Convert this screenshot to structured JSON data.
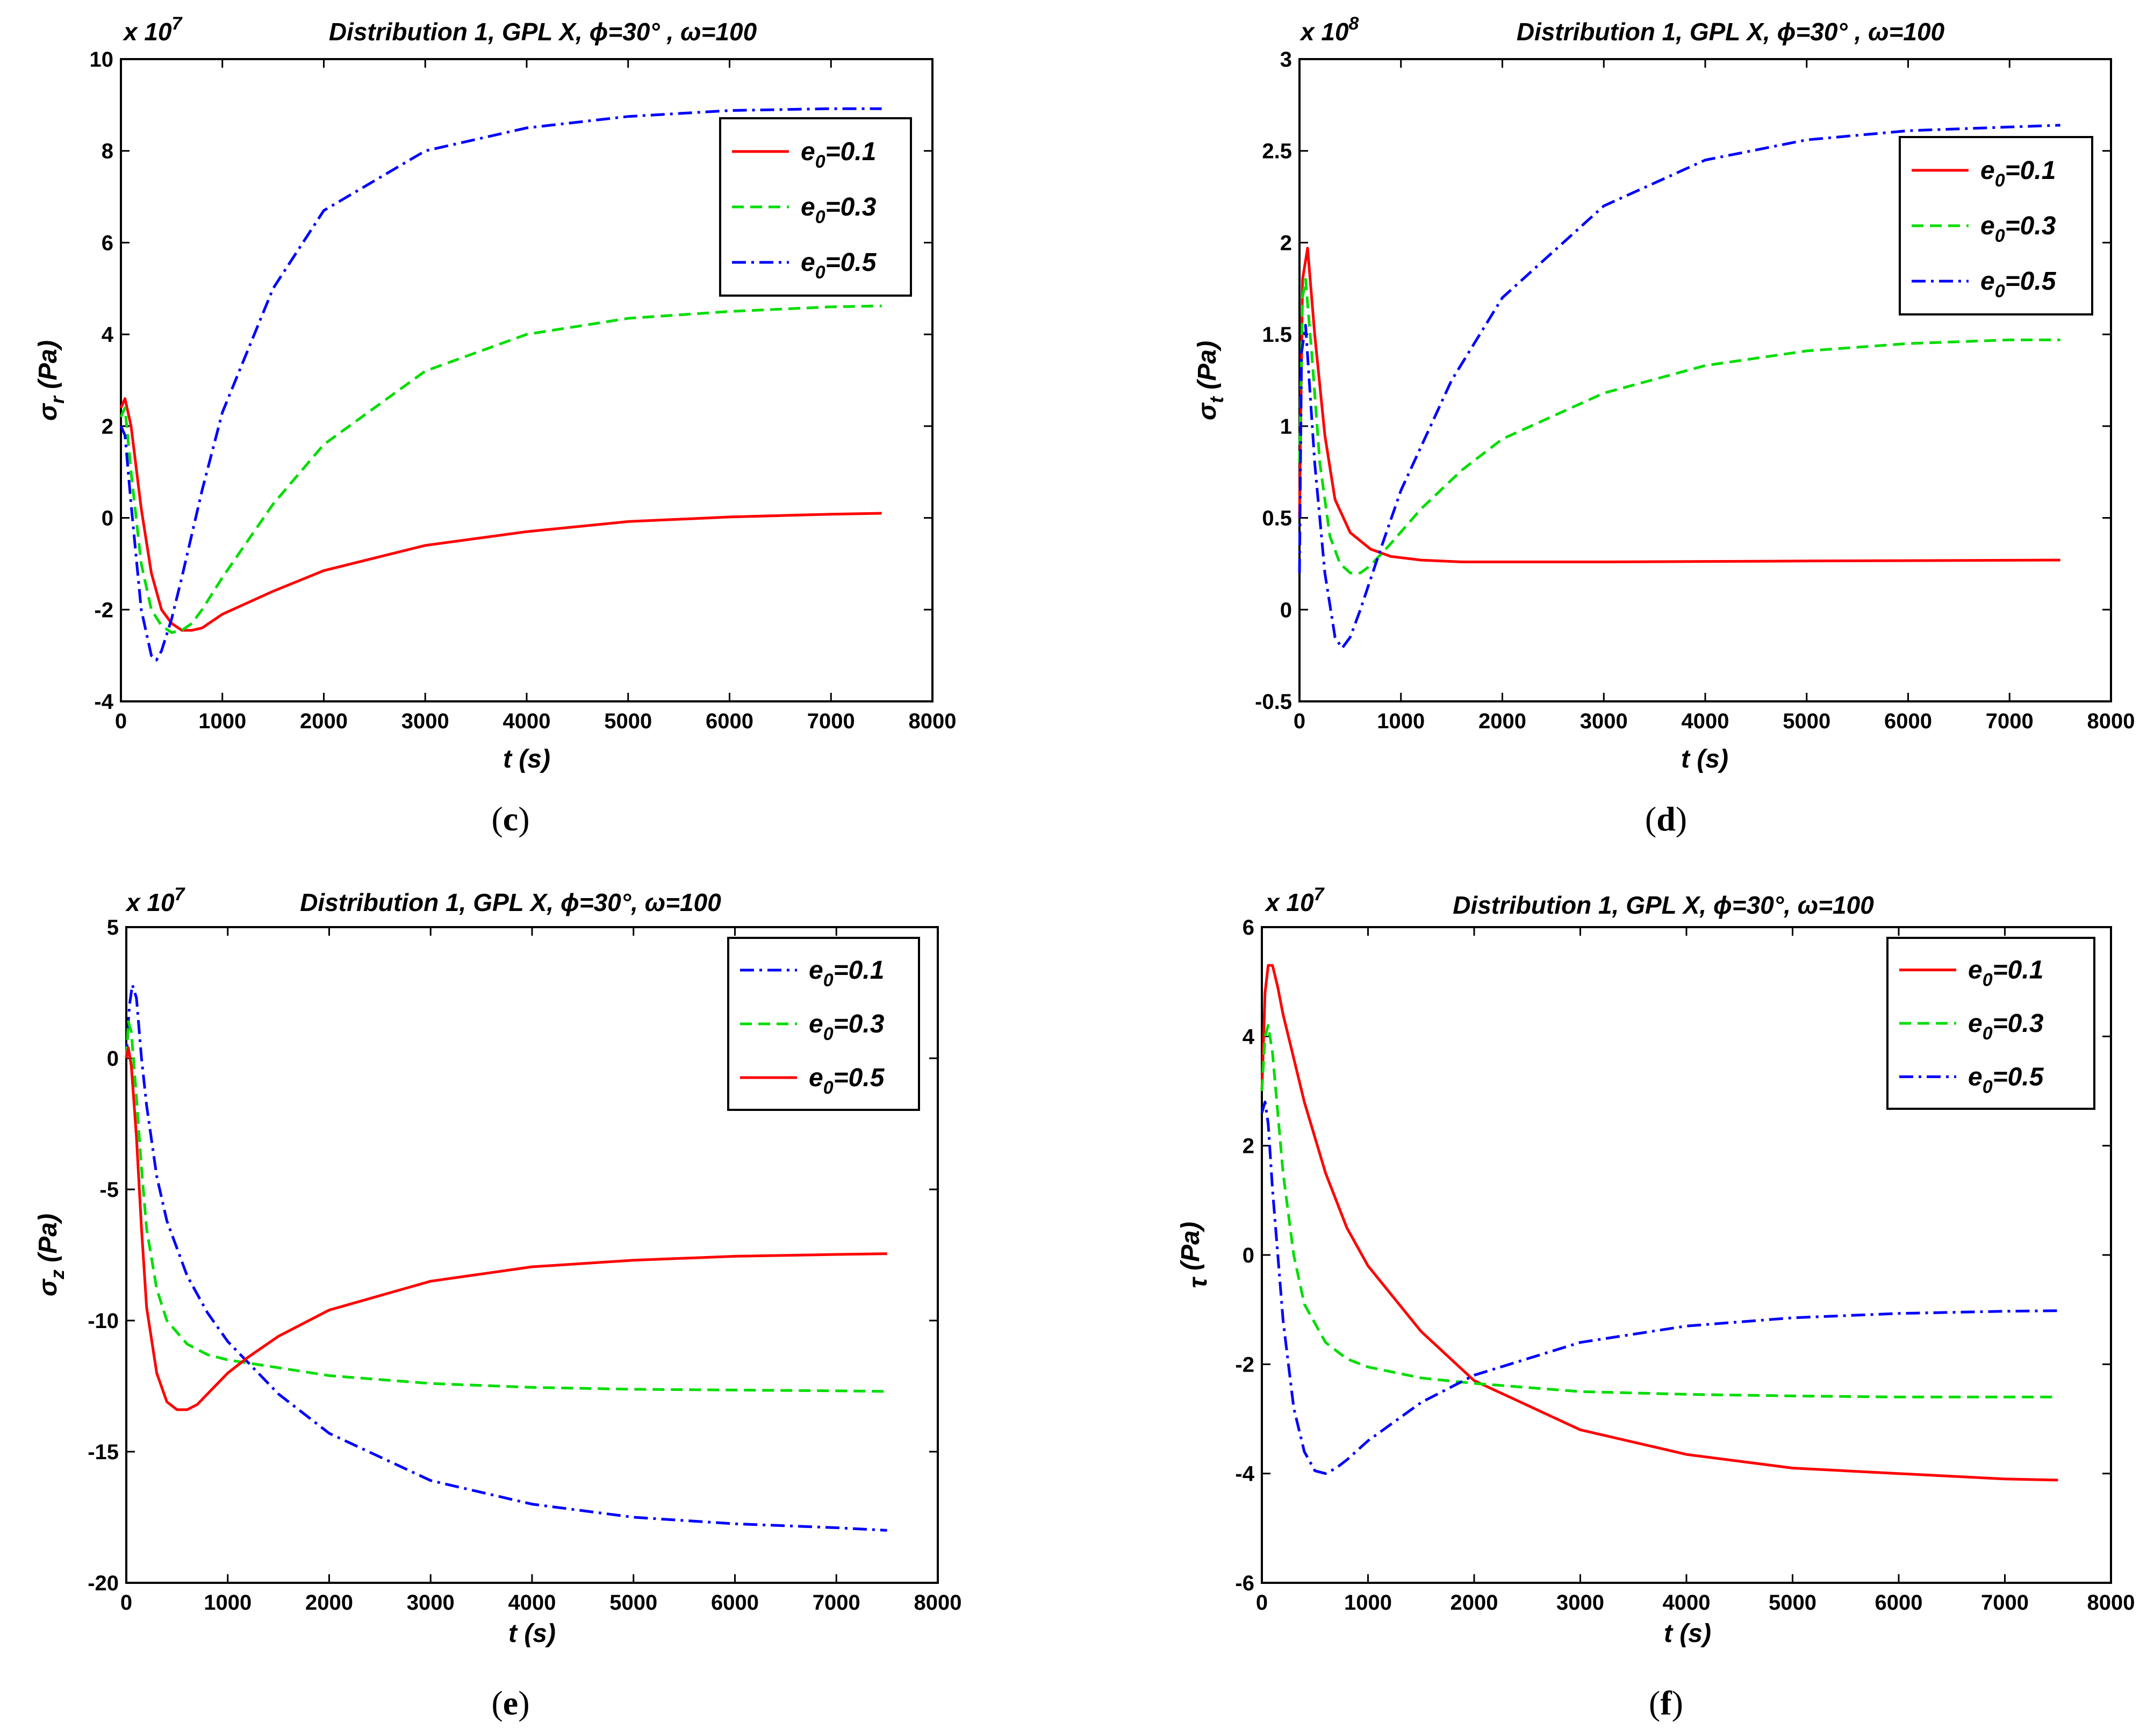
{
  "colors": {
    "red": "#ff0000",
    "green": "#00dd00",
    "blue": "#0000ff",
    "axis": "#000000"
  },
  "chart_data": [
    {
      "type": "line",
      "caption": "c",
      "title": "Distribution 1, GPL X, ϕ=30° , ω=100",
      "multiplier": "x 10",
      "exponent": "7",
      "xlabel": "t (s)",
      "ylabel_sym": "σ",
      "ylabel_sub": "r",
      "ylabel_unit": " (Pa)",
      "xlim": [
        0,
        8000
      ],
      "ylim": [
        -4,
        10
      ],
      "xticks": [
        0,
        1000,
        2000,
        3000,
        4000,
        5000,
        6000,
        7000,
        8000
      ],
      "yticks": [
        -4,
        -2,
        0,
        2,
        4,
        6,
        8,
        10
      ],
      "series": [
        {
          "legend": "0.1",
          "color": "red",
          "dash": "solid",
          "x": [
            0,
            40,
            100,
            200,
            300,
            400,
            500,
            600,
            700,
            800,
            1000,
            1500,
            2000,
            3000,
            4000,
            5000,
            6000,
            7000,
            7500
          ],
          "y": [
            2.4,
            2.6,
            2.0,
            0.2,
            -1.2,
            -2.0,
            -2.3,
            -2.45,
            -2.45,
            -2.4,
            -2.1,
            -1.6,
            -1.15,
            -0.6,
            -0.3,
            -0.08,
            0.02,
            0.08,
            0.1
          ]
        },
        {
          "legend": "0.3",
          "color": "green",
          "dash": "dashed",
          "x": [
            0,
            40,
            100,
            200,
            300,
            400,
            500,
            600,
            700,
            800,
            1000,
            1500,
            2000,
            3000,
            4000,
            5000,
            6000,
            7000,
            7500
          ],
          "y": [
            2.2,
            2.4,
            1.0,
            -1.0,
            -2.0,
            -2.35,
            -2.5,
            -2.45,
            -2.3,
            -2.0,
            -1.3,
            0.3,
            1.6,
            3.2,
            4.0,
            4.35,
            4.5,
            4.6,
            4.62
          ]
        },
        {
          "legend": "0.5",
          "color": "blue",
          "dash": "dashdot",
          "x": [
            0,
            40,
            100,
            200,
            300,
            350,
            400,
            500,
            600,
            800,
            1000,
            1500,
            2000,
            3000,
            4000,
            5000,
            6000,
            7000,
            7500
          ],
          "y": [
            2.0,
            1.8,
            0.3,
            -2.0,
            -3.0,
            -3.1,
            -2.9,
            -2.2,
            -1.3,
            0.6,
            2.3,
            5.0,
            6.7,
            8.0,
            8.5,
            8.75,
            8.88,
            8.92,
            8.92
          ]
        }
      ]
    },
    {
      "type": "line",
      "caption": "d",
      "title": "Distribution 1, GPL X, ϕ=30° , ω=100",
      "multiplier": "x 10",
      "exponent": "8",
      "xlabel": "t (s)",
      "ylabel_sym": "σ",
      "ylabel_sub": "t",
      "ylabel_unit": " (Pa)",
      "xlim": [
        0,
        8000
      ],
      "ylim": [
        -0.5,
        3
      ],
      "xticks": [
        0,
        1000,
        2000,
        3000,
        4000,
        5000,
        6000,
        7000,
        8000
      ],
      "yticks": [
        -0.5,
        0,
        0.5,
        1,
        1.5,
        2,
        2.5,
        3
      ],
      "series": [
        {
          "legend": "0.1",
          "color": "red",
          "dash": "solid",
          "x": [
            0,
            30,
            80,
            150,
            250,
            350,
            500,
            700,
            900,
            1200,
            1600,
            2000,
            3000,
            5000,
            7500
          ],
          "y": [
            0.5,
            1.8,
            1.97,
            1.5,
            0.95,
            0.6,
            0.42,
            0.33,
            0.29,
            0.27,
            0.26,
            0.26,
            0.26,
            0.265,
            0.27
          ]
        },
        {
          "legend": "0.3",
          "color": "green",
          "dash": "dashed",
          "x": [
            0,
            30,
            60,
            120,
            200,
            300,
            400,
            500,
            600,
            700,
            900,
            1200,
            1600,
            2000,
            3000,
            4000,
            5000,
            6000,
            7000,
            7500
          ],
          "y": [
            0.8,
            1.7,
            1.8,
            1.4,
            0.8,
            0.4,
            0.25,
            0.2,
            0.2,
            0.24,
            0.36,
            0.55,
            0.76,
            0.93,
            1.18,
            1.33,
            1.41,
            1.45,
            1.47,
            1.47
          ]
        },
        {
          "legend": "0.5",
          "color": "blue",
          "dash": "dashdot",
          "x": [
            0,
            20,
            60,
            150,
            250,
            350,
            420,
            500,
            600,
            800,
            1000,
            1500,
            2000,
            3000,
            4000,
            5000,
            6000,
            7000,
            7500
          ],
          "y": [
            0.2,
            1.4,
            1.55,
            0.8,
            0.2,
            -0.15,
            -0.21,
            -0.15,
            0.0,
            0.33,
            0.65,
            1.25,
            1.7,
            2.2,
            2.45,
            2.56,
            2.61,
            2.63,
            2.64
          ]
        }
      ]
    },
    {
      "type": "line",
      "caption": "e",
      "title": "Distribution 1, GPL X, ϕ=30°, ω=100",
      "multiplier": "x 10",
      "exponent": "7",
      "xlabel": "t (s)",
      "ylabel_sym": "σ",
      "ylabel_sub": "z",
      "ylabel_unit": " (Pa)",
      "xlim": [
        0,
        8000
      ],
      "ylim": [
        -20,
        5
      ],
      "xticks": [
        0,
        1000,
        2000,
        3000,
        4000,
        5000,
        6000,
        7000,
        8000
      ],
      "yticks": [
        -20,
        -15,
        -10,
        -5,
        0,
        5
      ],
      "series": [
        {
          "legend": "0.1",
          "color": "blue",
          "dash": "dashdot",
          "x": [
            0,
            30,
            60,
            100,
            150,
            200,
            300,
            400,
            600,
            800,
            1000,
            1500,
            2000,
            3000,
            4000,
            5000,
            6000,
            7000,
            7500
          ],
          "y": [
            0,
            2.0,
            2.8,
            2.3,
            0.0,
            -1.8,
            -4.5,
            -6.2,
            -8.3,
            -9.7,
            -10.8,
            -12.8,
            -14.3,
            -16.1,
            -17.0,
            -17.5,
            -17.75,
            -17.9,
            -18.0
          ]
        },
        {
          "legend": "0.3",
          "color": "green",
          "dash": "dashed",
          "x": [
            0,
            20,
            50,
            100,
            150,
            200,
            300,
            400,
            600,
            800,
            1000,
            1500,
            2000,
            3000,
            4000,
            5000,
            6000,
            7000,
            7500
          ],
          "y": [
            0,
            1.4,
            1.0,
            -1.5,
            -4.2,
            -6.5,
            -8.8,
            -10.0,
            -10.9,
            -11.3,
            -11.5,
            -11.8,
            -12.1,
            -12.4,
            -12.55,
            -12.62,
            -12.65,
            -12.68,
            -12.7
          ]
        },
        {
          "legend": "0.5",
          "color": "red",
          "dash": "solid",
          "x": [
            0,
            20,
            50,
            100,
            150,
            200,
            300,
            400,
            500,
            600,
            700,
            800,
            1000,
            1200,
            1500,
            2000,
            3000,
            4000,
            5000,
            6000,
            7000,
            7500
          ],
          "y": [
            0,
            0.4,
            -0.3,
            -3.0,
            -6.5,
            -9.5,
            -12.0,
            -13.1,
            -13.4,
            -13.4,
            -13.2,
            -12.8,
            -12.0,
            -11.4,
            -10.6,
            -9.6,
            -8.5,
            -7.95,
            -7.7,
            -7.55,
            -7.48,
            -7.45
          ]
        }
      ]
    },
    {
      "type": "line",
      "caption": "f",
      "title": "Distribution 1, GPL X, ϕ=30°, ω=100",
      "multiplier": "x 10",
      "exponent": "7",
      "xlabel": "t (s)",
      "ylabel_sym": "τ",
      "ylabel_sub": "",
      "ylabel_unit": " (Pa)",
      "xlim": [
        0,
        8000
      ],
      "ylim": [
        -6,
        6
      ],
      "xticks": [
        0,
        1000,
        2000,
        3000,
        4000,
        5000,
        6000,
        7000,
        8000
      ],
      "yticks": [
        -6,
        -4,
        -2,
        0,
        2,
        4,
        6
      ],
      "series": [
        {
          "legend": "0.1",
          "color": "red",
          "dash": "solid",
          "x": [
            0,
            30,
            60,
            100,
            150,
            200,
            300,
            400,
            600,
            800,
            1000,
            1500,
            2000,
            3000,
            4000,
            5000,
            6000,
            7000,
            7500
          ],
          "y": [
            3.0,
            4.8,
            5.3,
            5.3,
            4.9,
            4.4,
            3.6,
            2.8,
            1.5,
            0.5,
            -0.2,
            -1.4,
            -2.3,
            -3.2,
            -3.65,
            -3.9,
            -4.0,
            -4.1,
            -4.12
          ]
        },
        {
          "legend": "0.3",
          "color": "green",
          "dash": "dashed",
          "x": [
            0,
            30,
            60,
            100,
            150,
            200,
            300,
            400,
            600,
            800,
            1000,
            1500,
            2000,
            3000,
            4000,
            5000,
            6000,
            7000,
            7500
          ],
          "y": [
            3.0,
            4.0,
            4.2,
            3.7,
            2.6,
            1.5,
            0.0,
            -0.9,
            -1.6,
            -1.9,
            -2.05,
            -2.25,
            -2.35,
            -2.5,
            -2.55,
            -2.58,
            -2.6,
            -2.6,
            -2.6
          ]
        },
        {
          "legend": "0.5",
          "color": "blue",
          "dash": "dashdot",
          "x": [
            0,
            30,
            60,
            100,
            200,
            300,
            400,
            500,
            600,
            700,
            800,
            1000,
            1500,
            2000,
            3000,
            4000,
            5000,
            6000,
            7000,
            7500
          ],
          "y": [
            2.6,
            2.8,
            2.4,
            1.2,
            -1.2,
            -2.8,
            -3.6,
            -3.95,
            -4.0,
            -3.9,
            -3.75,
            -3.4,
            -2.7,
            -2.2,
            -1.6,
            -1.3,
            -1.15,
            -1.07,
            -1.03,
            -1.02
          ]
        }
      ]
    }
  ]
}
